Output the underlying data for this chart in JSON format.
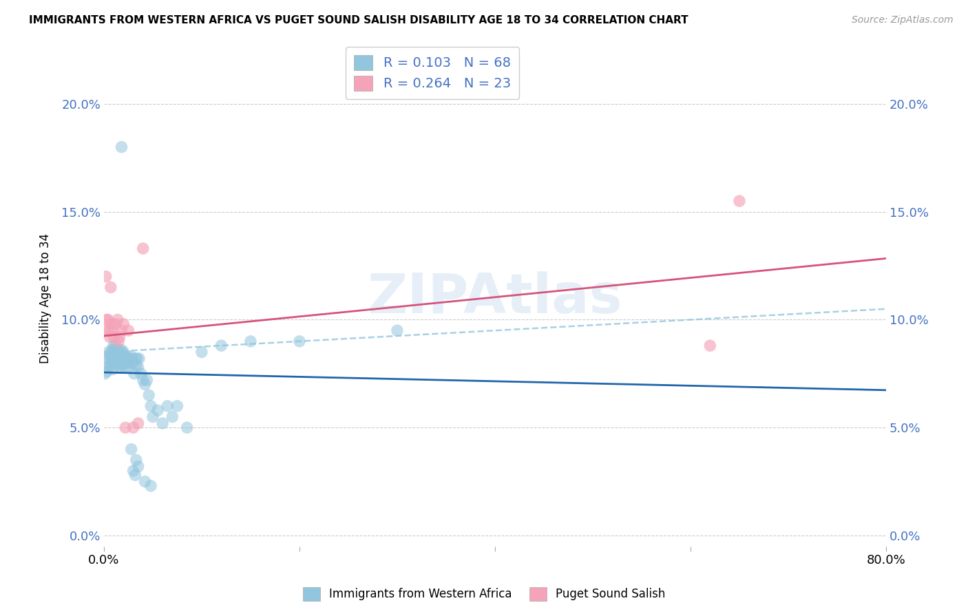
{
  "title": "IMMIGRANTS FROM WESTERN AFRICA VS PUGET SOUND SALISH DISABILITY AGE 18 TO 34 CORRELATION CHART",
  "source": "Source: ZipAtlas.com",
  "ylabel": "Disability Age 18 to 34",
  "y_ticks": [
    0.0,
    5.0,
    10.0,
    15.0,
    20.0
  ],
  "x_range": [
    0.0,
    0.8
  ],
  "y_range": [
    -0.005,
    0.225
  ],
  "blue_R": "0.103",
  "blue_N": "68",
  "pink_R": "0.264",
  "pink_N": "23",
  "blue_color": "#92c5de",
  "pink_color": "#f4a3b8",
  "blue_line_color": "#2166ac",
  "pink_line_color": "#d6537a",
  "dashed_line_color": "#92c5de",
  "watermark_color": "#cfe0f0",
  "tick_color": "#4472c4",
  "blue_scatter_x": [
    0.001,
    0.002,
    0.003,
    0.004,
    0.005,
    0.005,
    0.006,
    0.007,
    0.007,
    0.008,
    0.008,
    0.009,
    0.009,
    0.01,
    0.01,
    0.011,
    0.011,
    0.012,
    0.012,
    0.013,
    0.013,
    0.014,
    0.014,
    0.015,
    0.015,
    0.016,
    0.016,
    0.017,
    0.017,
    0.018,
    0.018,
    0.019,
    0.019,
    0.02,
    0.02,
    0.021,
    0.022,
    0.023,
    0.024,
    0.025,
    0.026,
    0.027,
    0.028,
    0.03,
    0.031,
    0.032,
    0.033,
    0.034,
    0.035,
    0.036,
    0.038,
    0.04,
    0.042,
    0.044,
    0.046,
    0.048,
    0.05,
    0.055,
    0.06,
    0.065,
    0.07,
    0.075,
    0.085,
    0.1,
    0.12,
    0.15,
    0.2,
    0.3
  ],
  "blue_scatter_y": [
    0.075,
    0.08,
    0.076,
    0.082,
    0.078,
    0.085,
    0.084,
    0.079,
    0.083,
    0.08,
    0.086,
    0.077,
    0.082,
    0.085,
    0.088,
    0.08,
    0.086,
    0.082,
    0.088,
    0.08,
    0.085,
    0.079,
    0.083,
    0.08,
    0.086,
    0.078,
    0.082,
    0.08,
    0.085,
    0.082,
    0.086,
    0.079,
    0.083,
    0.08,
    0.085,
    0.078,
    0.082,
    0.08,
    0.083,
    0.078,
    0.082,
    0.08,
    0.083,
    0.08,
    0.075,
    0.082,
    0.079,
    0.082,
    0.078,
    0.082,
    0.075,
    0.072,
    0.07,
    0.072,
    0.065,
    0.06,
    0.055,
    0.058,
    0.052,
    0.06,
    0.055,
    0.06,
    0.05,
    0.085,
    0.088,
    0.09,
    0.09,
    0.095
  ],
  "blue_scatter_y_outliers": [
    0.18,
    0.03,
    0.028,
    0.032,
    0.025,
    0.023,
    0.04,
    0.035
  ],
  "blue_scatter_x_outliers": [
    0.018,
    0.03,
    0.032,
    0.035,
    0.042,
    0.048,
    0.028,
    0.033
  ],
  "pink_scatter_x": [
    0.001,
    0.002,
    0.003,
    0.004,
    0.005,
    0.006,
    0.007,
    0.008,
    0.009,
    0.01,
    0.012,
    0.014,
    0.016,
    0.018,
    0.02,
    0.025,
    0.03,
    0.035,
    0.62,
    0.65,
    0.015,
    0.04,
    0.022
  ],
  "pink_scatter_y": [
    0.095,
    0.12,
    0.1,
    0.1,
    0.095,
    0.092,
    0.115,
    0.098,
    0.095,
    0.092,
    0.098,
    0.1,
    0.092,
    0.095,
    0.098,
    0.095,
    0.05,
    0.052,
    0.088,
    0.155,
    0.09,
    0.133,
    0.05
  ]
}
